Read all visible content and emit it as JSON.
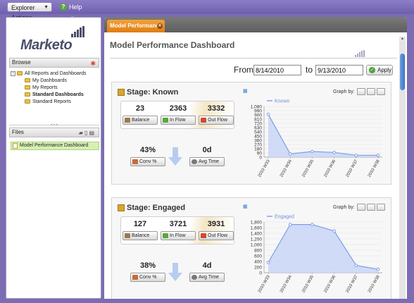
{
  "topbar": {
    "explorer_label": "Explorer Actions",
    "help_label": "Help"
  },
  "sidebar": {
    "logo_text": "Marketo",
    "browse_label": "Browse",
    "tree": [
      {
        "label": "All Reports and Dashboards",
        "level": 1,
        "bold": false
      },
      {
        "label": "My Dashboards",
        "level": 2,
        "bold": false
      },
      {
        "label": "My Reports",
        "level": 2,
        "bold": false
      },
      {
        "label": "Standard Dashboards",
        "level": 2,
        "bold": true
      },
      {
        "label": "Standard Reports",
        "level": 2,
        "bold": false
      }
    ],
    "files_label": "Files",
    "file_item": "Model Performance Dashboard"
  },
  "main": {
    "tab_label": "Model Performance ..",
    "title": "Model Performance Dashboard",
    "from_label": "From",
    "from_value": "8/14/2010",
    "to_label": "to",
    "to_value": "9/13/2010",
    "apply_label": "Apply",
    "graph_by_label": "Graph by:"
  },
  "stages": [
    {
      "title": "Stage: Known",
      "balance": "23",
      "in_flow": "2363",
      "out_flow": "3332",
      "conv": "43%",
      "avg_time": "0d",
      "labels": {
        "balance": "Balance",
        "in_flow": "In Flow",
        "out_flow": "Out Flow",
        "conv": "Conv %",
        "avg_time": "Avg Time"
      }
    },
    {
      "title": "Stage: Engaged",
      "balance": "127",
      "in_flow": "3721",
      "out_flow": "3931",
      "conv": "38%",
      "avg_time": "4d",
      "labels": {
        "balance": "Balance",
        "in_flow": "In Flow",
        "out_flow": "Out Flow",
        "conv": "Conv %",
        "avg_time": "Avg Time"
      }
    }
  ],
  "chart_data": [
    {
      "type": "area",
      "legend": "Known",
      "categories": [
        "2010 W33",
        "2010 W34",
        "2010 W35",
        "2010 W36",
        "2010 W37",
        "2010 W38"
      ],
      "series": [
        {
          "name": "Known",
          "values": [
            910,
            70,
            120,
            100,
            40,
            40
          ]
        }
      ],
      "ylim": [
        0,
        1080
      ],
      "yticks": [
        "0",
        "90",
        "180",
        "270",
        "360",
        "450",
        "540",
        "630",
        "720",
        "810",
        "900",
        "990",
        "1,080"
      ],
      "ytick_values": [
        0,
        90,
        180,
        270,
        360,
        450,
        540,
        630,
        720,
        810,
        900,
        990,
        1080
      ],
      "color": "#7e9ee6",
      "fill": "#c9d6f7",
      "legend_position": "top-left"
    },
    {
      "type": "area",
      "legend": "Engaged",
      "categories": [
        "2010 W33",
        "2010 W34",
        "2010 W35",
        "2010 W36",
        "2010 W37",
        "2010 W38"
      ],
      "series": [
        {
          "name": "Engaged",
          "values": [
            360,
            1710,
            1710,
            1480,
            260,
            120
          ]
        }
      ],
      "ylim": [
        0,
        1800
      ],
      "yticks": [
        "0",
        "200",
        "400",
        "600",
        "800",
        "1,000",
        "1,200",
        "1,400",
        "1,600",
        "1,800"
      ],
      "ytick_values": [
        0,
        200,
        400,
        600,
        800,
        1000,
        1200,
        1400,
        1600,
        1800
      ],
      "color": "#7e9ee6",
      "fill": "#c9d6f7",
      "legend_position": "top-left"
    }
  ]
}
